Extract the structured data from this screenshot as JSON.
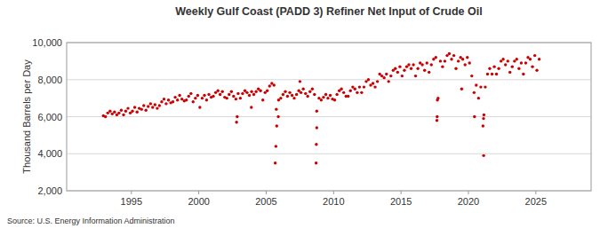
{
  "chart_data": {
    "type": "scatter",
    "title": "Weekly Gulf Coast (PADD 3) Refiner Net Input of Crude Oil",
    "y_label": "Thousand Barrels per Day",
    "source": "Source: U.S. Energy Information Administration",
    "color": "#cc0000",
    "marker": "circle",
    "grid": true,
    "xlim": [
      1990.2,
      2029.1
    ],
    "ylim": [
      2000,
      10000
    ],
    "xticks": [
      1995,
      2000,
      2005,
      2010,
      2015,
      2020,
      2025
    ],
    "yticks": [
      {
        "value": 2000,
        "label": "2,000"
      },
      {
        "value": 4000,
        "label": "4,000"
      },
      {
        "value": 6000,
        "label": "6,000"
      },
      {
        "value": 8000,
        "label": "8,000"
      },
      {
        "value": 10000,
        "label": "10,000"
      }
    ],
    "x": [
      1992.92,
      1993.08,
      1993.25,
      1993.42,
      1993.58,
      1993.75,
      1993.92,
      1994.08,
      1994.25,
      1994.42,
      1994.58,
      1994.75,
      1994.92,
      1995.08,
      1995.25,
      1995.42,
      1995.58,
      1995.75,
      1995.92,
      1996.08,
      1996.25,
      1996.42,
      1996.58,
      1996.75,
      1996.92,
      1997.08,
      1997.25,
      1997.42,
      1997.58,
      1997.75,
      1997.92,
      1998.08,
      1998.25,
      1998.42,
      1998.58,
      1998.75,
      1998.92,
      1999.08,
      1999.25,
      1999.42,
      1999.58,
      1999.75,
      1999.92,
      2000.08,
      2000.25,
      2000.42,
      2000.58,
      2000.75,
      2000.92,
      2001.08,
      2001.25,
      2001.42,
      2001.58,
      2001.75,
      2001.92,
      2002.08,
      2002.25,
      2002.42,
      2002.58,
      2002.75,
      2002.92,
      2003.08,
      2003.25,
      2003.42,
      2003.58,
      2003.75,
      2003.92,
      2004.08,
      2004.25,
      2004.42,
      2004.58,
      2004.75,
      2004.92,
      2005.08,
      2005.25,
      2005.42,
      2005.58,
      2005.75,
      2005.92,
      2006.08,
      2006.25,
      2006.42,
      2006.58,
      2006.75,
      2006.92,
      2007.08,
      2007.25,
      2007.42,
      2007.58,
      2007.75,
      2007.92,
      2008.08,
      2008.25,
      2008.42,
      2008.58,
      2008.75,
      2008.92,
      2009.08,
      2009.25,
      2009.42,
      2009.58,
      2009.75,
      2009.92,
      2010.08,
      2010.25,
      2010.42,
      2010.58,
      2010.75,
      2010.92,
      2011.08,
      2011.25,
      2011.42,
      2011.58,
      2011.75,
      2011.92,
      2012.08,
      2012.25,
      2012.42,
      2012.58,
      2012.75,
      2012.92,
      2013.08,
      2013.25,
      2013.42,
      2013.58,
      2013.75,
      2013.92,
      2014.08,
      2014.25,
      2014.42,
      2014.58,
      2014.75,
      2014.92,
      2015.08,
      2015.25,
      2015.42,
      2015.58,
      2015.75,
      2015.92,
      2016.08,
      2016.25,
      2016.42,
      2016.58,
      2016.75,
      2016.92,
      2017.08,
      2017.25,
      2017.42,
      2017.58,
      2017.75,
      2017.92,
      2018.08,
      2018.25,
      2018.42,
      2018.58,
      2018.75,
      2018.92,
      2019.08,
      2019.25,
      2019.42,
      2019.58,
      2019.75,
      2019.92,
      2020.08,
      2020.25,
      2020.42,
      2020.58,
      2020.75,
      2020.92,
      2021.08,
      2021.25,
      2021.42,
      2021.58,
      2021.75,
      2021.92,
      2022.08,
      2022.25,
      2022.42,
      2022.58,
      2022.75,
      2022.92,
      2023.08,
      2023.25,
      2023.42,
      2023.58,
      2023.75,
      2023.92,
      2024.08,
      2024.25,
      2024.42,
      2024.58,
      2024.75,
      2024.92,
      2025.08,
      2025.25,
      2002.8,
      2002.85,
      2005.67,
      2005.72,
      2005.78,
      2005.9,
      2008.7,
      2008.72,
      2008.75,
      2017.66,
      2017.68,
      2017.7,
      2021.13,
      2021.12,
      2021.15,
      2020.45,
      2003.9,
      2007.5,
      2019.5
    ],
    "values": [
      6050,
      6000,
      6200,
      6300,
      6150,
      6250,
      6100,
      6200,
      6350,
      6100,
      6300,
      6450,
      6200,
      6300,
      6500,
      6250,
      6450,
      6400,
      6600,
      6350,
      6550,
      6700,
      6500,
      6650,
      6450,
      6600,
      6800,
      6950,
      6700,
      6900,
      6750,
      6800,
      7050,
      6900,
      7150,
      6950,
      6850,
      6900,
      7100,
      7250,
      6800,
      7000,
      7150,
      6500,
      7000,
      7150,
      6900,
      7200,
      7050,
      7100,
      7300,
      7400,
      7200,
      7350,
      7050,
      7000,
      7200,
      7350,
      7100,
      6950,
      7250,
      7000,
      7250,
      7400,
      7300,
      7150,
      7350,
      7200,
      7350,
      7500,
      7400,
      6900,
      7300,
      7400,
      7650,
      7800,
      7700,
      6400,
      6900,
      7000,
      7200,
      7350,
      7100,
      7300,
      7150,
      7000,
      7200,
      7400,
      7300,
      7500,
      7250,
      7100,
      7350,
      7500,
      7200,
      6300,
      7000,
      6900,
      7050,
      7200,
      7000,
      7150,
      6950,
      6900,
      7200,
      7400,
      7500,
      7300,
      7100,
      7100,
      7400,
      7600,
      7500,
      7300,
      7600,
      7300,
      7600,
      7900,
      8000,
      7700,
      7800,
      7600,
      7900,
      8300,
      8200,
      8100,
      8300,
      7900,
      8200,
      8500,
      8600,
      8400,
      8700,
      8200,
      8500,
      8700,
      8800,
      8600,
      8800,
      8200,
      8600,
      8900,
      8800,
      8500,
      8900,
      8400,
      8800,
      9100,
      9200,
      7000,
      9000,
      8700,
      9000,
      9300,
      9400,
      9100,
      9300,
      8600,
      9000,
      9200,
      9100,
      8800,
      9200,
      8900,
      8200,
      7300,
      7700,
      7000,
      7600,
      5500,
      7600,
      8300,
      8600,
      8300,
      8700,
      8300,
      8600,
      9000,
      9100,
      8800,
      9000,
      8400,
      8700,
      9000,
      9100,
      8600,
      8900,
      8300,
      8900,
      9200,
      9100,
      8700,
      9300,
      8500,
      9100,
      5700,
      6000,
      3500,
      4400,
      5500,
      6000,
      3500,
      4500,
      5400,
      5800,
      6000,
      6900,
      3900,
      5900,
      6100,
      6000,
      6500,
      7900,
      7500
    ]
  }
}
